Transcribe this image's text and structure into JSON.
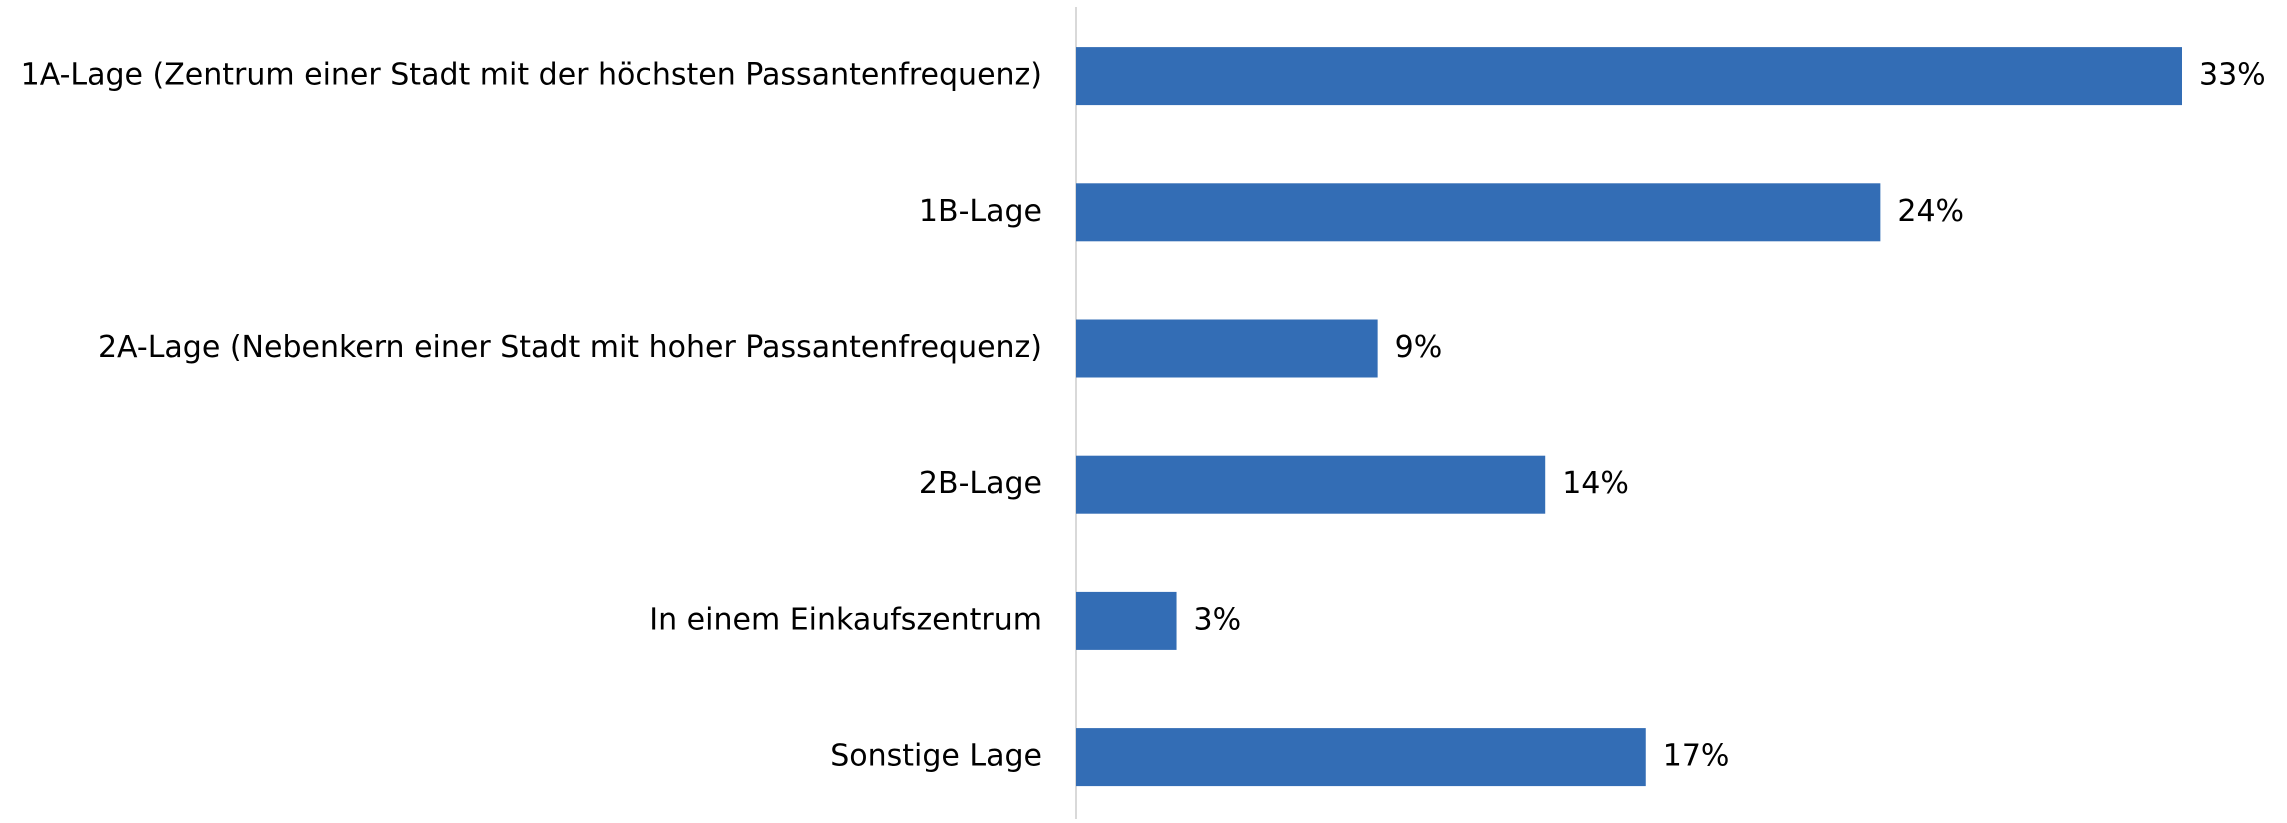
{
  "chart_data": {
    "type": "barh",
    "categories": [
      "1A-Lage (Zentrum einer Stadt mit der höchsten Passantenfrequenz)",
      "1B-Lage",
      "2A-Lage (Nebenkern einer Stadt mit hoher Passantenfrequenz)",
      "2B-Lage",
      "In einem Einkaufszentrum",
      "Sonstige Lage"
    ],
    "values": [
      33,
      24,
      9,
      14,
      3,
      17
    ],
    "value_labels": [
      "33%",
      "24%",
      "9%",
      "14%",
      "3%",
      "17%"
    ],
    "color": "#336db5"
  }
}
